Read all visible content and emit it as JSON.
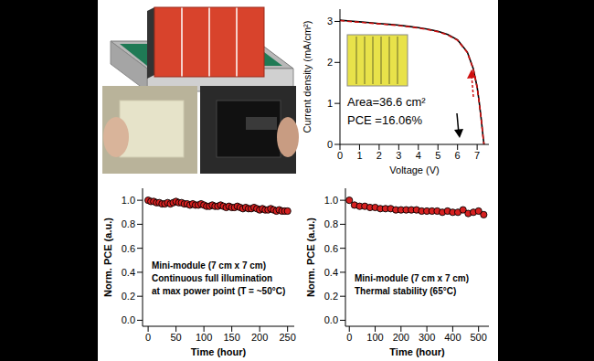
{
  "chart_data": [
    {
      "type": "line",
      "xlabel": "Voltage (V)",
      "ylabel": "Current density (mA/cm²)",
      "x": [
        0,
        0.5,
        1,
        1.5,
        2,
        2.5,
        3,
        3.5,
        4,
        4.5,
        5,
        5.5,
        6,
        6.5,
        6.8,
        7.0,
        7.1,
        7.2,
        7.3,
        7.35
      ],
      "series": [
        {
          "color": "#000000",
          "line_style": "solid",
          "values": [
            3.03,
            3.01,
            2.99,
            2.97,
            2.95,
            2.93,
            2.91,
            2.88,
            2.85,
            2.81,
            2.76,
            2.68,
            2.55,
            2.25,
            1.85,
            1.4,
            1.05,
            0.65,
            0.2,
            0.0
          ]
        },
        {
          "color": "#d01010",
          "line_style": "dashed",
          "values": [
            3.02,
            3.0,
            2.98,
            2.96,
            2.94,
            2.92,
            2.9,
            2.87,
            2.84,
            2.8,
            2.75,
            2.67,
            2.54,
            2.24,
            1.84,
            1.39,
            1.04,
            0.64,
            0.19,
            0.0
          ]
        }
      ],
      "xlim": [
        0,
        7.6
      ],
      "xticks": [
        0,
        1,
        2,
        3,
        4,
        5,
        6,
        7
      ],
      "ylim": [
        0,
        3.3
      ],
      "yticks": [
        0,
        1,
        2,
        3
      ],
      "annotations": [
        "Area=36.6 cm²",
        "PCE =16.06%"
      ]
    },
    {
      "type": "scatter",
      "xlabel": "Time (hour)",
      "ylabel": "Norm. PCE (a.u.)",
      "x": [
        0,
        5,
        10,
        15,
        20,
        25,
        30,
        35,
        40,
        45,
        50,
        55,
        60,
        65,
        70,
        75,
        80,
        85,
        90,
        95,
        100,
        105,
        110,
        115,
        120,
        125,
        130,
        135,
        140,
        145,
        150,
        155,
        160,
        165,
        170,
        175,
        180,
        185,
        190,
        195,
        200,
        205,
        210,
        215,
        220,
        225,
        230,
        235,
        240,
        245,
        250
      ],
      "series": [
        {
          "color": "#d62020",
          "marker": "circle",
          "values": [
            1.0,
            0.99,
            0.99,
            0.98,
            0.98,
            0.97,
            0.97,
            0.98,
            0.97,
            0.98,
            0.99,
            0.98,
            0.98,
            0.97,
            0.97,
            0.96,
            0.97,
            0.96,
            0.96,
            0.97,
            0.96,
            0.95,
            0.95,
            0.96,
            0.95,
            0.95,
            0.96,
            0.95,
            0.94,
            0.95,
            0.94,
            0.94,
            0.95,
            0.94,
            0.93,
            0.94,
            0.93,
            0.93,
            0.94,
            0.93,
            0.92,
            0.93,
            0.92,
            0.92,
            0.93,
            0.92,
            0.91,
            0.92,
            0.91,
            0.91,
            0.91
          ]
        }
      ],
      "xlim": [
        -10,
        262
      ],
      "xticks": [
        0,
        50,
        100,
        150,
        200,
        250
      ],
      "ylim": [
        -0.05,
        1.1
      ],
      "yticks": [
        {
          "value": 0,
          "label": "0.0"
        },
        0.2,
        0.4,
        0.6,
        0.8,
        {
          "value": 1,
          "label": "1.0"
        }
      ],
      "annotations": [
        "Mini-module (7 cm x 7 cm)",
        "Continuous full illumination",
        "at max power point (T = ~50°C)"
      ]
    },
    {
      "type": "scatter",
      "xlabel": "Time (hour)",
      "ylabel": "Norm. PCE (a.u.)",
      "x": [
        0,
        20,
        40,
        60,
        80,
        100,
        120,
        140,
        160,
        180,
        200,
        220,
        240,
        260,
        280,
        300,
        320,
        340,
        360,
        380,
        400,
        420,
        440,
        460,
        480,
        500,
        520
      ],
      "series": [
        {
          "color": "#d62020",
          "marker": "circle",
          "values": [
            1.0,
            0.96,
            0.95,
            0.95,
            0.94,
            0.94,
            0.93,
            0.93,
            0.93,
            0.92,
            0.92,
            0.92,
            0.92,
            0.92,
            0.91,
            0.91,
            0.91,
            0.91,
            0.9,
            0.91,
            0.9,
            0.9,
            0.92,
            0.89,
            0.9,
            0.91,
            0.88
          ]
        }
      ],
      "xlim": [
        -15,
        540
      ],
      "xticks": [
        0,
        100,
        200,
        300,
        400,
        500
      ],
      "ylim": [
        -0.05,
        1.1
      ],
      "yticks": [
        {
          "value": 0,
          "label": "0.0"
        },
        0.2,
        0.4,
        0.6,
        0.8,
        {
          "value": 1,
          "label": "1.0"
        }
      ],
      "annotations": [
        "Mini-module (7 cm x 7 cm)",
        "Thermal stability (65°C)"
      ]
    }
  ]
}
